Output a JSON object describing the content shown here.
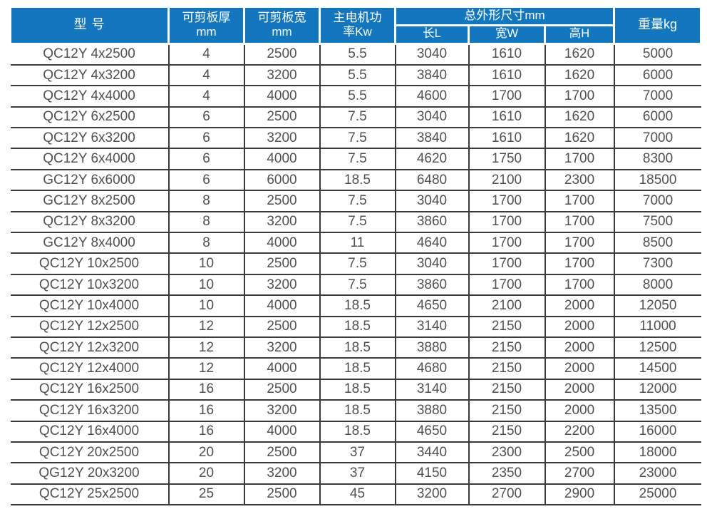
{
  "colors": {
    "header_bg": "#1377bd",
    "header_text": "#ffffff",
    "body_text": "#505050",
    "grid_line": "#3a3a3a"
  },
  "table": {
    "headers": {
      "model": "型 号",
      "thickness_line1": "可剪板厚",
      "thickness_line2": "mm",
      "sheet_width_line1": "可剪板宽",
      "sheet_width_line2": "mm",
      "power_line1": "主电机功",
      "power_line2": "率Kw",
      "dims_group": "总外形尺寸mm",
      "dim_length": "长L",
      "dim_width": "宽W",
      "dim_height": "高H",
      "weight": "重量kg"
    },
    "rows": [
      [
        "QC12Y 4x2500",
        "4",
        "2500",
        "5.5",
        "3040",
        "1610",
        "1620",
        "5000"
      ],
      [
        "QC12Y 4x3200",
        "4",
        "3200",
        "5.5",
        "3840",
        "1610",
        "1620",
        "6000"
      ],
      [
        "QC12Y 4x4000",
        "4",
        "4000",
        "5.5",
        "4600",
        "1700",
        "1700",
        "7000"
      ],
      [
        "QC12Y 6x2500",
        "6",
        "2500",
        "7.5",
        "3040",
        "1610",
        "1620",
        "6000"
      ],
      [
        "QC12Y 6x3200",
        "6",
        "3200",
        "7.5",
        "3840",
        "1610",
        "1620",
        "7000"
      ],
      [
        "QC12Y 6x4000",
        "6",
        "4000",
        "7.5",
        "4620",
        "1750",
        "1700",
        "8300"
      ],
      [
        "GC12Y 6x6000",
        "6",
        "6000",
        "18.5",
        "6480",
        "2100",
        "2300",
        "18500"
      ],
      [
        "GC12Y 8x2500",
        "8",
        "2500",
        "7.5",
        "3040",
        "1700",
        "1700",
        "7000"
      ],
      [
        "QC12Y 8x3200",
        "8",
        "3200",
        "7.5",
        "3860",
        "1700",
        "1700",
        "7500"
      ],
      [
        "GC12Y 8x4000",
        "8",
        "4000",
        "11",
        "4640",
        "1700",
        "1700",
        "8500"
      ],
      [
        "QC12Y 10x2500",
        "10",
        "2500",
        "7.5",
        "3040",
        "1700",
        "1700",
        "7300"
      ],
      [
        "QC12Y 10x3200",
        "10",
        "3200",
        "7.5",
        "3860",
        "1700",
        "1700",
        "8000"
      ],
      [
        "QC12Y 10x4000",
        "10",
        "4000",
        "18.5",
        "4650",
        "2100",
        "2000",
        "12050"
      ],
      [
        "QC12Y 12x2500",
        "12",
        "2500",
        "18.5",
        "3140",
        "2150",
        "2000",
        "11000"
      ],
      [
        "QC12Y 12x3200",
        "12",
        "3200",
        "18.5",
        "3880",
        "2150",
        "2000",
        "12500"
      ],
      [
        "QC12Y 12x4000",
        "12",
        "4000",
        "18.5",
        "4680",
        "2150",
        "2000",
        "14500"
      ],
      [
        "QC12Y 16x2500",
        "16",
        "2500",
        "18.5",
        "3140",
        "2150",
        "2000",
        "12000"
      ],
      [
        "QC12Y 16x3200",
        "16",
        "3200",
        "18.5",
        "3880",
        "2150",
        "2000",
        "13500"
      ],
      [
        "QC12Y 16x4000",
        "16",
        "4000",
        "18.5",
        "4650",
        "2150",
        "2200",
        "16000"
      ],
      [
        "QC12Y 20x2500",
        "20",
        "2500",
        "37",
        "3440",
        "2300",
        "2500",
        "18000"
      ],
      [
        "QG12Y 20x3200",
        "20",
        "3200",
        "37",
        "4150",
        "2350",
        "2700",
        "23000"
      ],
      [
        "QC12Y 25x2500",
        "25",
        "2500",
        "45",
        "3200",
        "2700",
        "2900",
        "25000"
      ]
    ]
  }
}
